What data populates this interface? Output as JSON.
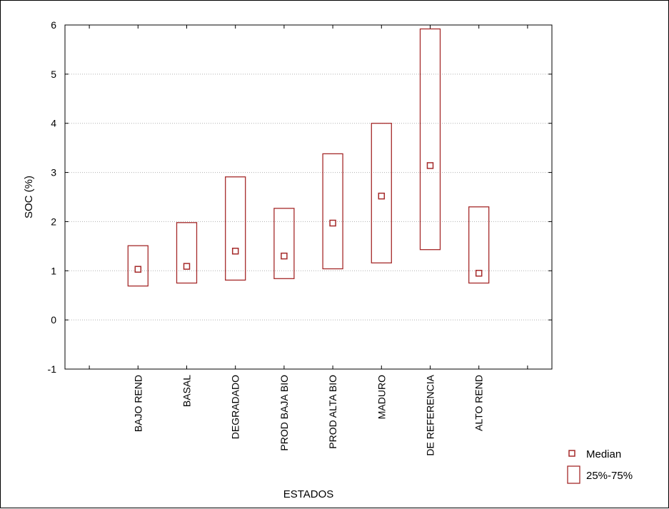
{
  "chart_data": {
    "type": "box",
    "title": "",
    "xlabel": "ESTADOS",
    "ylabel": "SOC (%)",
    "ylim": [
      -1,
      6
    ],
    "yticks": [
      "-1",
      "0",
      "1",
      "2",
      "3",
      "4",
      "5",
      "6"
    ],
    "grid": "horizontal dotted",
    "categories": [
      "BAJO REND",
      "BASAL",
      "DEGRADADO",
      "PROD BAJA BIO",
      "PROD ALTA BIO",
      "MADURO",
      "DE REFERENCIA",
      "ALTO REND"
    ],
    "series": [
      {
        "name": "Median",
        "values": [
          1.03,
          1.09,
          1.4,
          1.3,
          1.97,
          2.52,
          3.14,
          0.95
        ]
      },
      {
        "name": "25%-75%",
        "q1": [
          0.69,
          0.75,
          0.81,
          0.84,
          1.04,
          1.16,
          1.43,
          0.75
        ],
        "q3": [
          1.51,
          1.98,
          2.91,
          2.27,
          3.38,
          4.0,
          5.92,
          2.3
        ]
      }
    ],
    "legend": {
      "position": "bottom-right",
      "median_label": "Median",
      "iqr_label": "25%-75%"
    },
    "colors": {
      "box": "#a52a2a",
      "grid": "#b0b0b0",
      "axis": "#000000"
    }
  }
}
